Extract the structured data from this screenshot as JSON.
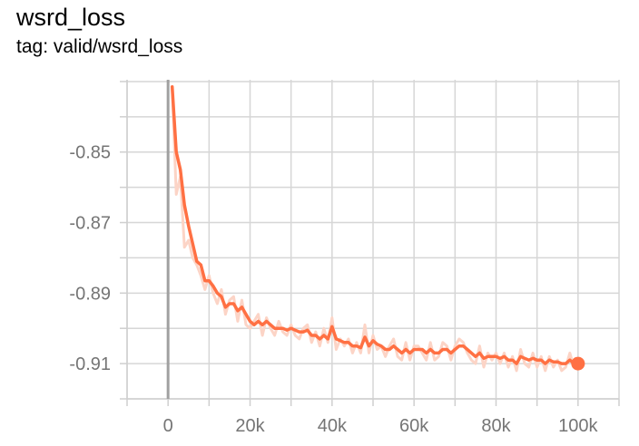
{
  "chart_data": {
    "type": "line",
    "title": "wsrd_loss",
    "subtitle": "tag: valid/wsrd_loss",
    "xlabel": "",
    "ylabel": "",
    "xlim": [
      -10000,
      110000
    ],
    "ylim": [
      -0.92,
      -0.8295
    ],
    "x_ticks": [
      0,
      20000,
      40000,
      60000,
      80000,
      100000
    ],
    "x_tick_labels": [
      "0",
      "20k",
      "40k",
      "60k",
      "80k",
      "100k"
    ],
    "y_ticks": [
      -0.85,
      -0.87,
      -0.89,
      -0.91
    ],
    "y_tick_labels": [
      "-0.85",
      "-0.87",
      "-0.89",
      "-0.91"
    ],
    "grid": true,
    "colors": {
      "smoothed": "#ff7043",
      "raw": "#fcd4c6",
      "grid": "#d6d6d6",
      "zero_line": "#a0a0a0",
      "axis": "#cfcfcf",
      "tick_text": "#757575"
    },
    "series": [
      {
        "x": [
          1000,
          2000,
          3000,
          4000,
          5000,
          6000,
          7000,
          8000,
          9000,
          10000,
          11000,
          12000,
          13000,
          14000,
          15000,
          16000,
          17000,
          18000,
          19000,
          20000,
          21000,
          22000,
          23000,
          24000,
          25000,
          26000,
          27000,
          28000,
          29000,
          30000,
          31000,
          32000,
          33000,
          34000,
          35000,
          36000,
          37000,
          38000,
          39000,
          40000,
          41000,
          42000,
          43000,
          44000,
          45000,
          46000,
          47000,
          48000,
          49000,
          50000,
          51000,
          52000,
          53000,
          54000,
          55000,
          56000,
          57000,
          58000,
          59000,
          60000,
          61000,
          62000,
          63000,
          64000,
          65000,
          66000,
          67000,
          68000,
          69000,
          70000,
          71000,
          72000,
          73000,
          74000,
          75000,
          76000,
          77000,
          78000,
          79000,
          80000,
          81000,
          82000,
          83000,
          84000,
          85000,
          86000,
          87000,
          88000,
          89000,
          90000,
          91000,
          92000,
          93000,
          94000,
          95000,
          96000,
          97000,
          98000,
          99000,
          100000
        ],
        "smoothed": [
          -0.8315,
          -0.85,
          -0.855,
          -0.865,
          -0.871,
          -0.876,
          -0.881,
          -0.882,
          -0.8865,
          -0.8865,
          -0.888,
          -0.89,
          -0.891,
          -0.894,
          -0.893,
          -0.893,
          -0.895,
          -0.894,
          -0.896,
          -0.898,
          -0.899,
          -0.898,
          -0.899,
          -0.898,
          -0.899,
          -0.9,
          -0.9,
          -0.9,
          -0.9005,
          -0.9,
          -0.9005,
          -0.901,
          -0.901,
          -0.9005,
          -0.902,
          -0.902,
          -0.903,
          -0.902,
          -0.903,
          -0.8995,
          -0.903,
          -0.9035,
          -0.904,
          -0.904,
          -0.905,
          -0.905,
          -0.9055,
          -0.9025,
          -0.905,
          -0.9035,
          -0.9045,
          -0.905,
          -0.906,
          -0.906,
          -0.905,
          -0.906,
          -0.907,
          -0.906,
          -0.907,
          -0.906,
          -0.906,
          -0.906,
          -0.907,
          -0.906,
          -0.907,
          -0.907,
          -0.906,
          -0.906,
          -0.907,
          -0.906,
          -0.905,
          -0.905,
          -0.906,
          -0.907,
          -0.908,
          -0.907,
          -0.9085,
          -0.908,
          -0.908,
          -0.908,
          -0.9085,
          -0.908,
          -0.909,
          -0.909,
          -0.91,
          -0.908,
          -0.9085,
          -0.909,
          -0.9085,
          -0.909,
          -0.909,
          -0.91,
          -0.909,
          -0.9095,
          -0.9095,
          -0.91,
          -0.91,
          -0.909,
          -0.91,
          -0.91
        ],
        "raw": [
          -0.8315,
          -0.862,
          -0.857,
          -0.877,
          -0.875,
          -0.88,
          -0.882,
          -0.885,
          -0.889,
          -0.885,
          -0.89,
          -0.893,
          -0.889,
          -0.896,
          -0.892,
          -0.891,
          -0.898,
          -0.892,
          -0.899,
          -0.9,
          -0.898,
          -0.896,
          -0.902,
          -0.897,
          -0.9,
          -0.902,
          -0.898,
          -0.901,
          -0.902,
          -0.899,
          -0.902,
          -0.903,
          -0.9,
          -0.899,
          -0.904,
          -0.901,
          -0.905,
          -0.9,
          -0.904,
          -0.897,
          -0.906,
          -0.903,
          -0.905,
          -0.903,
          -0.907,
          -0.904,
          -0.907,
          -0.899,
          -0.907,
          -0.902,
          -0.906,
          -0.905,
          -0.908,
          -0.905,
          -0.903,
          -0.908,
          -0.909,
          -0.904,
          -0.909,
          -0.905,
          -0.905,
          -0.907,
          -0.909,
          -0.904,
          -0.909,
          -0.908,
          -0.904,
          -0.905,
          -0.909,
          -0.905,
          -0.903,
          -0.904,
          -0.907,
          -0.909,
          -0.91,
          -0.905,
          -0.911,
          -0.907,
          -0.909,
          -0.907,
          -0.91,
          -0.907,
          -0.911,
          -0.908,
          -0.912,
          -0.906,
          -0.91,
          -0.911,
          -0.907,
          -0.911,
          -0.908,
          -0.912,
          -0.908,
          -0.911,
          -0.909,
          -0.912,
          -0.911,
          -0.907,
          -0.911,
          -0.91
        ]
      }
    ]
  }
}
